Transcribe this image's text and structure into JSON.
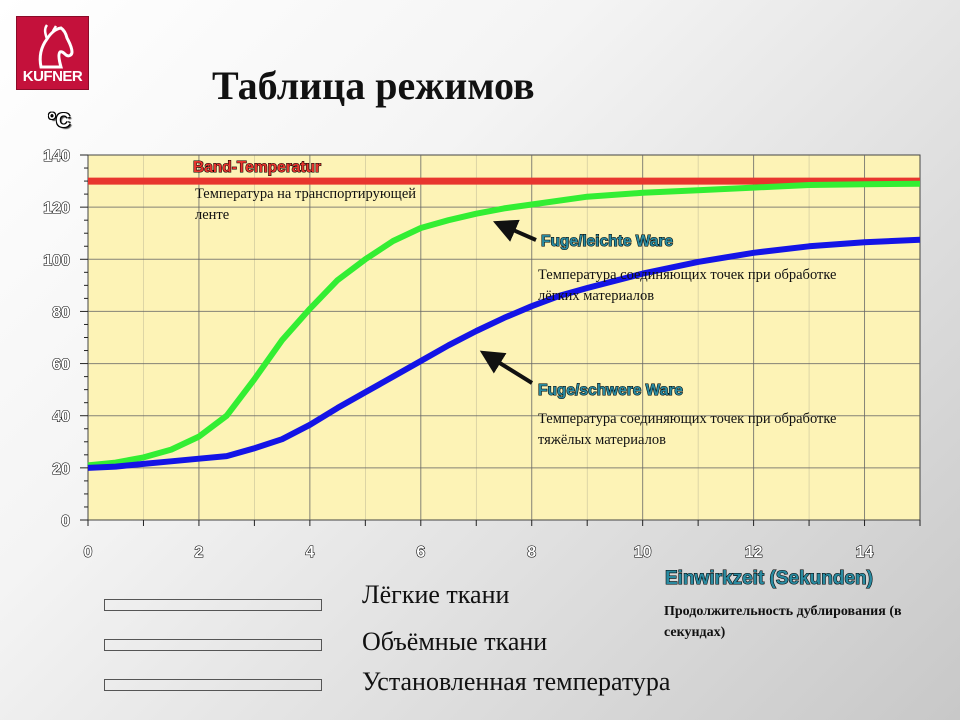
{
  "logo": {
    "text": "KUFNER",
    "icon": "horse-head-icon"
  },
  "title": "Таблица режимов",
  "chart_data": {
    "type": "line",
    "ylabel": "°C",
    "xlabel": "Einwirkzeit (Sekunden)",
    "xlabel_note": "Продолжительность дублирования (в секундах)",
    "xlim": [
      0,
      15
    ],
    "ylim": [
      0,
      140
    ],
    "x_ticks": [
      "0",
      "2",
      "4",
      "6",
      "8",
      "10",
      "12",
      "14"
    ],
    "y_ticks": [
      "0",
      "20",
      "40",
      "60",
      "80",
      "100",
      "120",
      "140"
    ],
    "grid": true,
    "background_color": "#fdf3b6",
    "series": [
      {
        "name": "Band-Temperatur",
        "color": "#e8352e",
        "x": [
          0,
          15
        ],
        "y": [
          130,
          130
        ]
      },
      {
        "name": "Fuge/leichte Ware",
        "color": "#33ee33",
        "x": [
          0,
          0.5,
          1,
          1.5,
          2,
          2.5,
          3,
          3.5,
          4,
          4.5,
          5,
          5.5,
          6,
          6.5,
          7,
          7.5,
          8,
          9,
          10,
          11,
          12,
          13,
          14,
          15
        ],
        "y": [
          21,
          22,
          24,
          27,
          32,
          40,
          54,
          69,
          81,
          92,
          100,
          107,
          112,
          115,
          117.5,
          119.5,
          121,
          124,
          125.5,
          126.5,
          127.5,
          128.5,
          128.8,
          129
        ]
      },
      {
        "name": "Fuge/schwere Ware",
        "color": "#1414e6",
        "x": [
          0,
          0.5,
          1,
          1.5,
          2,
          2.5,
          3,
          3.5,
          4,
          4.5,
          5,
          5.5,
          6,
          6.5,
          7,
          7.5,
          8,
          8.5,
          9,
          10,
          11,
          12,
          13,
          14,
          15
        ],
        "y": [
          20,
          20.5,
          21.5,
          22.5,
          23.5,
          24.5,
          27.5,
          31,
          36.5,
          43,
          49,
          55,
          61,
          67,
          72.5,
          77.5,
          82,
          86,
          89,
          94.5,
          99,
          102.5,
          105,
          106.5,
          107.5
        ]
      }
    ],
    "annotations": [
      {
        "label": "Band-Temperatur",
        "note": "Температура на транспортирующей ленте"
      },
      {
        "label": "Fuge/leichte Ware",
        "note": "Температура соединяющих точек при обработке лёгких материалов"
      },
      {
        "label": "Fuge/schwere Ware",
        "note": "Температура соединяющих точек при обработке тяжёлых материалов"
      }
    ]
  },
  "legend": [
    {
      "label": "Лёгкие ткани",
      "color": "#33ee33"
    },
    {
      "label": "Объёмные ткани",
      "color": "#1414e6"
    },
    {
      "label": "Установленная  температура",
      "color": "#e8352e"
    }
  ]
}
